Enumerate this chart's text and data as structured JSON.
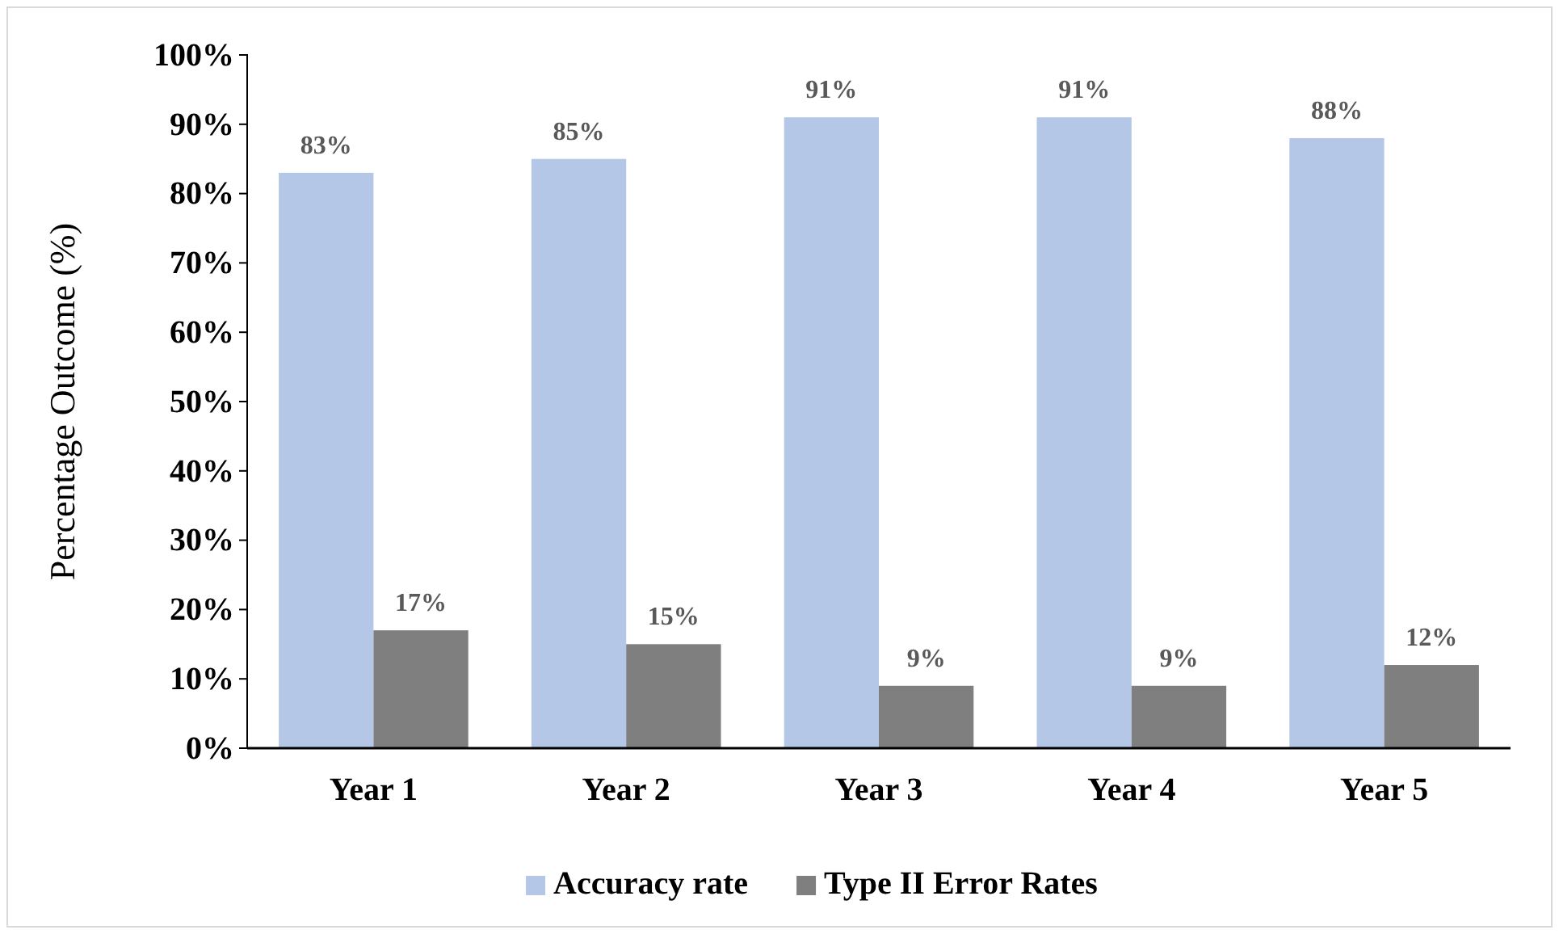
{
  "chart_data": {
    "type": "bar",
    "ylabel": "Percentage Outcome (%)",
    "categories": [
      "Year 1",
      "Year 2",
      "Year 3",
      "Year 4",
      "Year 5"
    ],
    "series": [
      {
        "name": "Accuracy rate",
        "color": "#b4c7e7",
        "values": [
          83,
          85,
          91,
          91,
          88
        ],
        "value_labels": [
          "83%",
          "85%",
          "91%",
          "91%",
          "88%"
        ]
      },
      {
        "name": "Type II Error Rates",
        "color": "#7f7f7f",
        "values": [
          17,
          15,
          9,
          9,
          12
        ],
        "value_labels": [
          "17%",
          "15%",
          "9%",
          "9%",
          "12%"
        ]
      }
    ],
    "ylim": [
      0,
      100
    ],
    "yticks": [
      {
        "value": 0,
        "label": "0%"
      },
      {
        "value": 10,
        "label": "10%"
      },
      {
        "value": 20,
        "label": "20%"
      },
      {
        "value": 30,
        "label": "30%"
      },
      {
        "value": 40,
        "label": "40%"
      },
      {
        "value": 50,
        "label": "50%"
      },
      {
        "value": 60,
        "label": "60%"
      },
      {
        "value": 70,
        "label": "70%"
      },
      {
        "value": 80,
        "label": "80%"
      },
      {
        "value": 90,
        "label": "90%"
      },
      {
        "value": 100,
        "label": "100%"
      }
    ],
    "grid": false,
    "legend": "bottom"
  }
}
